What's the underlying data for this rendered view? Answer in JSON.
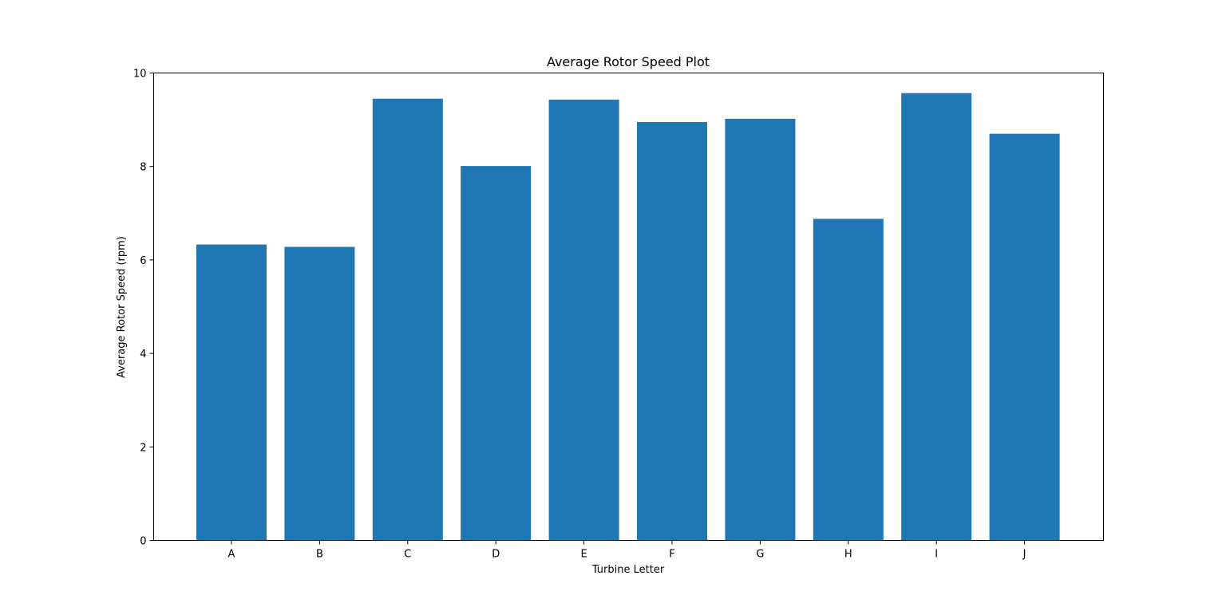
{
  "chart_data": {
    "type": "bar",
    "title": "Average Rotor Speed Plot",
    "xlabel": "Turbine Letter",
    "ylabel": "Average Rotor Speed (rpm)",
    "categories": [
      "A",
      "B",
      "C",
      "D",
      "E",
      "F",
      "G",
      "H",
      "I",
      "J"
    ],
    "values": [
      6.33,
      6.28,
      9.45,
      8.01,
      9.43,
      8.95,
      9.02,
      6.88,
      9.57,
      8.7
    ],
    "ylim": [
      0,
      10
    ],
    "yticks": [
      "0",
      "2",
      "4",
      "6",
      "8",
      "10"
    ],
    "grid": false,
    "legend": "none",
    "bar_color": "#1f77b4"
  }
}
